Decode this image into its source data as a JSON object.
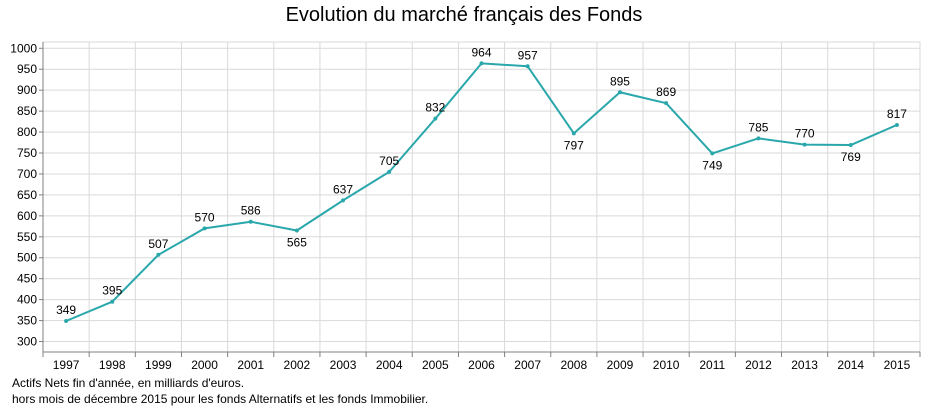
{
  "chart_data": {
    "type": "line",
    "title": "Evolution du marché français des Fonds",
    "categories": [
      "1997",
      "1998",
      "1999",
      "2000",
      "2001",
      "2002",
      "2003",
      "2004",
      "2005",
      "2006",
      "2007",
      "2008",
      "2009",
      "2010",
      "2011",
      "2012",
      "2013",
      "2014",
      "2015"
    ],
    "series": [
      {
        "values": [
          349,
          395,
          507,
          570,
          586,
          565,
          637,
          705,
          832,
          964,
          957,
          797,
          895,
          869,
          749,
          785,
          770,
          769,
          817
        ]
      }
    ],
    "data_label_position": [
      "above",
      "above",
      "above",
      "above",
      "above",
      "below",
      "above",
      "above",
      "above",
      "above",
      "above",
      "below",
      "above",
      "above",
      "below",
      "above",
      "above",
      "below",
      "above"
    ],
    "yticks": [
      300,
      350,
      400,
      450,
      500,
      550,
      600,
      650,
      700,
      750,
      800,
      850,
      900,
      950,
      1000
    ],
    "ylim": [
      275,
      1015
    ],
    "grid": true,
    "line_color": "#2aa7ab",
    "grid_color": "#d9d9d9",
    "xlabel": "",
    "ylabel": ""
  },
  "footnotes": {
    "line1": "Actifs Nets fin d'année, en milliards d'euros.",
    "line2": "hors mois de décembre 2015 pour les fonds Alternatifs et les fonds Immobilier."
  }
}
